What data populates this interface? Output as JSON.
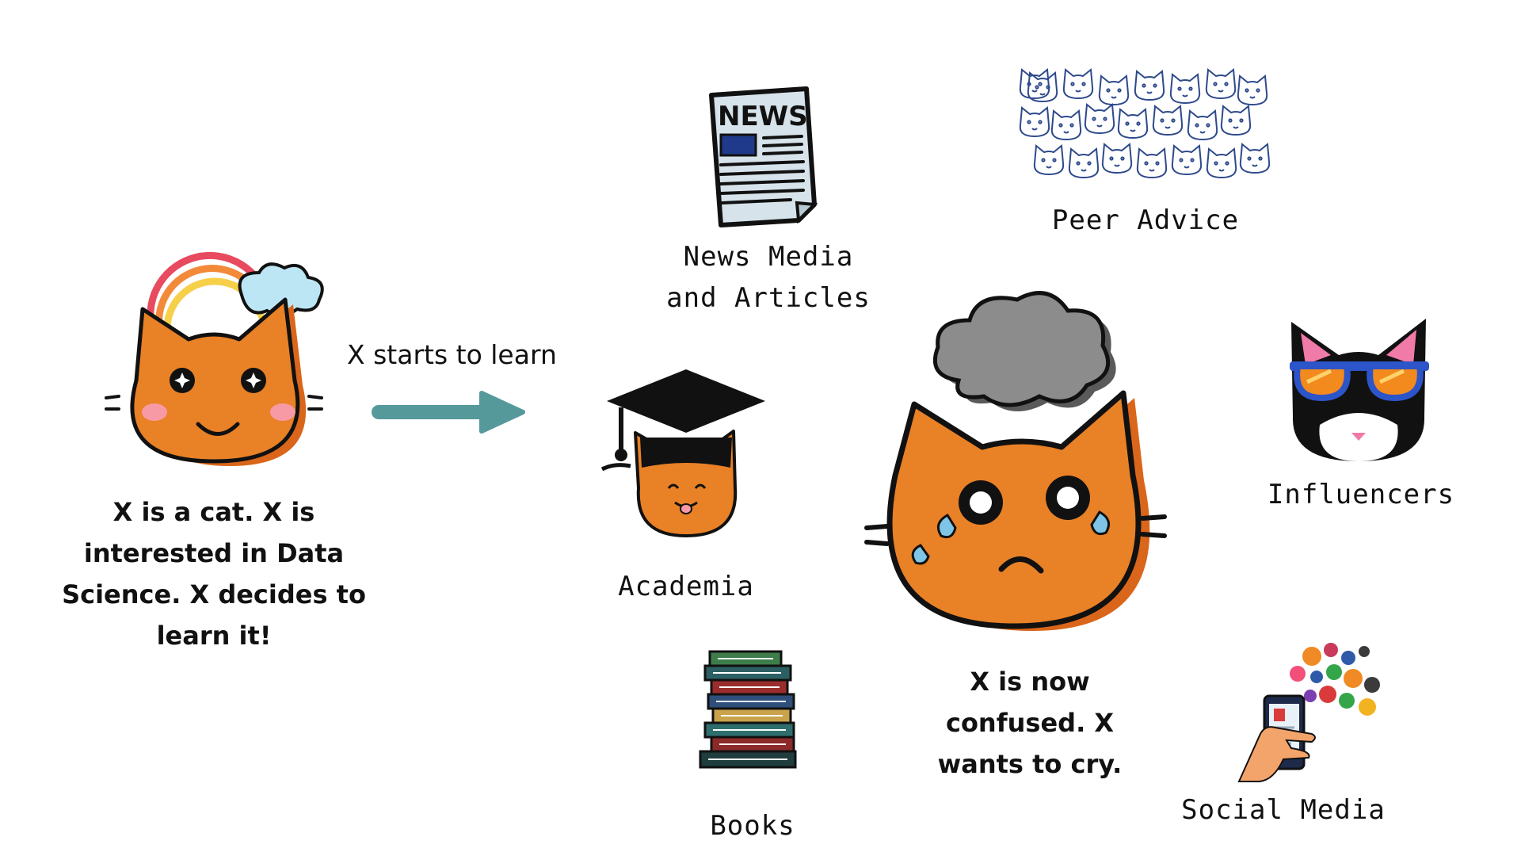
{
  "start": {
    "caption_lines": [
      "X is a cat. X is",
      "interested in Data",
      "Science. X decides to",
      "learn it!"
    ]
  },
  "arrow": {
    "label": "X starts to learn",
    "color": "#55999b"
  },
  "sources": {
    "news": [
      "News Media",
      "and Articles"
    ],
    "peer": "Peer Advice",
    "academia": "Academia",
    "influencers": "Influencers",
    "books": "Books",
    "social": "Social Media"
  },
  "end": {
    "caption_lines": [
      "X is now",
      "confused. X",
      "wants to cry."
    ]
  },
  "icons": {
    "newspaper_text": "NEWS"
  },
  "colors": {
    "cat_orange": "#e98126",
    "cat_orange_dark": "#d9661a",
    "cloud_blue": "#bde6f5",
    "storm_gray": "#8c8c8c",
    "blush_pink": "#f79aa6"
  }
}
